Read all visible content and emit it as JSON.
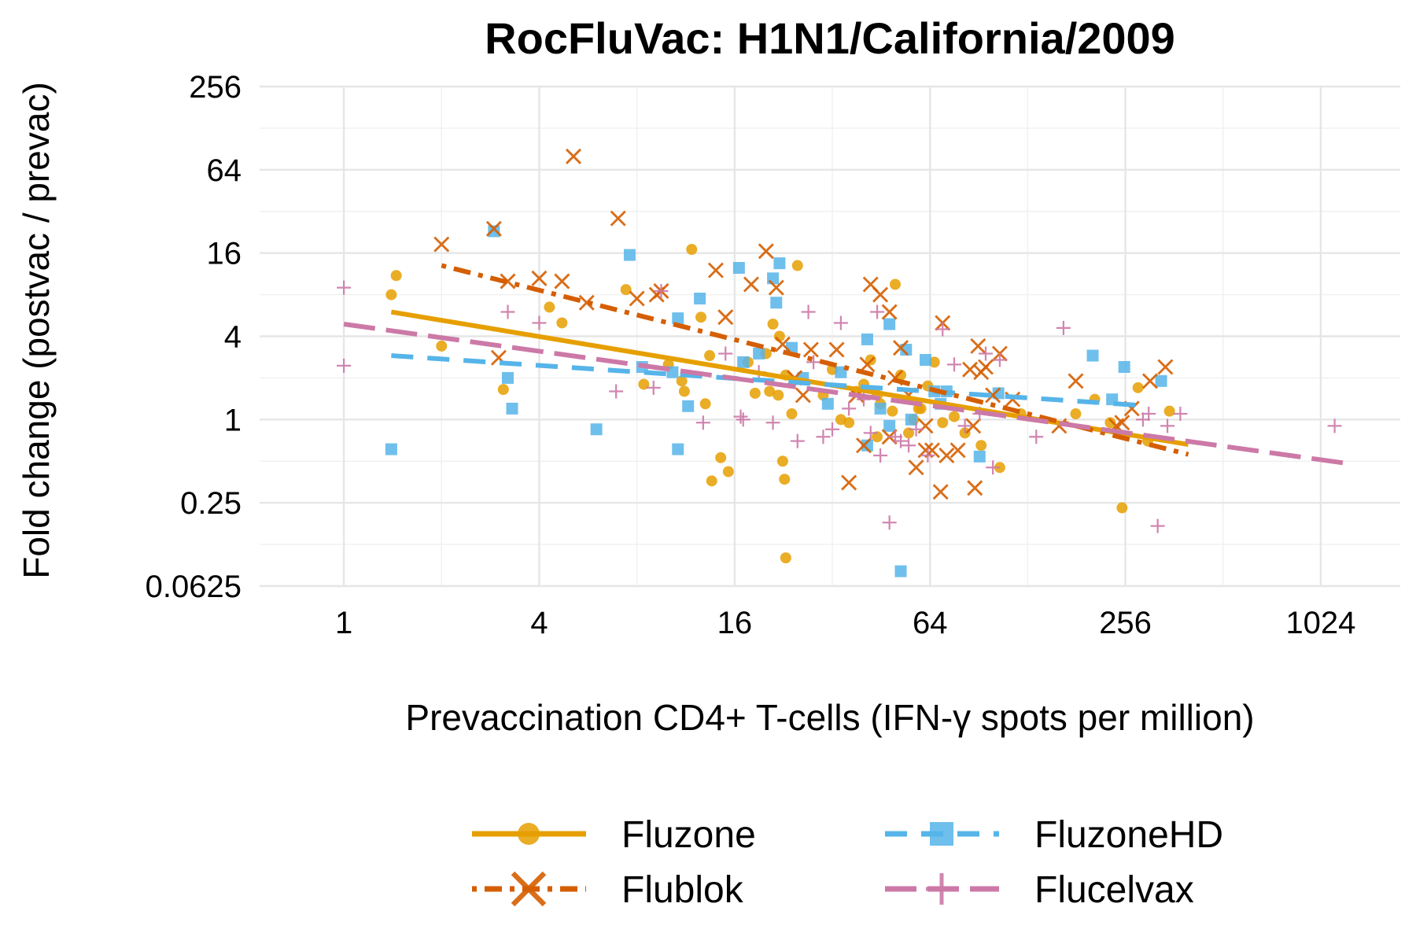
{
  "chart_data": {
    "type": "scatter",
    "title": "RocFluVac: H1N1/California/2009",
    "xlabel": "Prevaccination CD4+ T-cells (IFN-γ spots per million)",
    "ylabel": "Fold change (postvac / prevac)",
    "x_scale": "log2",
    "y_scale": "log2",
    "xlim": [
      0.55,
      1800
    ],
    "ylim": [
      0.0625,
      256
    ],
    "x_ticks": [
      1,
      4,
      16,
      64,
      256,
      1024
    ],
    "x_tick_labels": [
      "1",
      "4",
      "16",
      "64",
      "256",
      "1024"
    ],
    "y_ticks": [
      0.0625,
      0.25,
      1,
      4,
      16,
      64,
      256
    ],
    "y_tick_labels": [
      "0.0625",
      "0.25",
      "1",
      "4",
      "16",
      "64",
      "256"
    ],
    "grid": true,
    "legend_position": "bottom",
    "series": [
      {
        "name": "Fluzone",
        "marker": "circle",
        "line_style": "solid",
        "color": "#E69F00",
        "points": [
          [
            1.45,
            11.0
          ],
          [
            1.4,
            8.0
          ],
          [
            2.0,
            3.4
          ],
          [
            3.1,
            1.65
          ],
          [
            4.3,
            6.5
          ],
          [
            4.7,
            5.0
          ],
          [
            7.4,
            8.7
          ],
          [
            8.4,
            1.8
          ],
          [
            10.0,
            2.5
          ],
          [
            11.0,
            1.9
          ],
          [
            11.2,
            1.6
          ],
          [
            11.8,
            17.0
          ],
          [
            12.6,
            5.5
          ],
          [
            13.4,
            2.9
          ],
          [
            14.5,
            0.53
          ],
          [
            15.3,
            0.42
          ],
          [
            13.6,
            0.36
          ],
          [
            13.0,
            1.3
          ],
          [
            17.6,
            2.6
          ],
          [
            18.5,
            1.55
          ],
          [
            20.0,
            3.0
          ],
          [
            20.5,
            1.6
          ],
          [
            21.0,
            4.9
          ],
          [
            22.0,
            4.0
          ],
          [
            22.5,
            0.5
          ],
          [
            22.8,
            0.37
          ],
          [
            23.0,
            0.1
          ],
          [
            23.0,
            2.1
          ],
          [
            25.0,
            13.0
          ],
          [
            24.0,
            1.1
          ],
          [
            21.8,
            1.5
          ],
          [
            30.0,
            1.5
          ],
          [
            32.0,
            2.3
          ],
          [
            34.0,
            1.0
          ],
          [
            36.0,
            0.95
          ],
          [
            38.0,
            1.6
          ],
          [
            40.0,
            1.8
          ],
          [
            42.0,
            2.7
          ],
          [
            44.0,
            1.5
          ],
          [
            45.0,
            1.3
          ],
          [
            49.0,
            1.15
          ],
          [
            52.0,
            2.1
          ],
          [
            55.0,
            0.8
          ],
          [
            57.0,
            1.0
          ],
          [
            59.0,
            1.2
          ],
          [
            60.0,
            1.2
          ],
          [
            63.0,
            1.75
          ],
          [
            66.0,
            2.6
          ],
          [
            70.0,
            0.95
          ],
          [
            76.0,
            1.05
          ],
          [
            82.0,
            0.8
          ],
          [
            92.0,
            0.65
          ],
          [
            105.0,
            0.45
          ],
          [
            122.0,
            1.1
          ],
          [
            180.0,
            1.1
          ],
          [
            206.0,
            1.4
          ],
          [
            230.0,
            0.95
          ],
          [
            250.0,
            0.23
          ],
          [
            280.0,
            1.7
          ],
          [
            300.0,
            0.7
          ],
          [
            350.0,
            1.15
          ],
          [
            50.0,
            9.5
          ],
          [
            44.0,
            0.75
          ]
        ],
        "trend": [
          [
            1.4,
            6.0
          ],
          [
            400,
            0.66
          ]
        ]
      },
      {
        "name": "FluzoneHD",
        "marker": "square",
        "line_style": "dashed",
        "color": "#56B4E9",
        "points": [
          [
            1.4,
            0.61
          ],
          [
            2.9,
            23.0
          ],
          [
            3.2,
            2.0
          ],
          [
            3.3,
            1.2
          ],
          [
            6.0,
            0.85
          ],
          [
            7.6,
            15.5
          ],
          [
            8.3,
            2.4
          ],
          [
            10.7,
            0.61
          ],
          [
            10.7,
            5.4
          ],
          [
            10.3,
            2.2
          ],
          [
            11.5,
            1.25
          ],
          [
            12.5,
            7.5
          ],
          [
            16.5,
            12.5
          ],
          [
            17.0,
            2.6
          ],
          [
            19.0,
            3.0
          ],
          [
            21.0,
            10.5
          ],
          [
            22.0,
            13.5
          ],
          [
            21.5,
            7.0
          ],
          [
            24.0,
            3.3
          ],
          [
            26.0,
            2.0
          ],
          [
            31.0,
            1.3
          ],
          [
            34.0,
            2.2
          ],
          [
            41.0,
            3.8
          ],
          [
            41.0,
            0.65
          ],
          [
            45.0,
            1.2
          ],
          [
            48.0,
            0.9
          ],
          [
            48.0,
            4.9
          ],
          [
            52.0,
            0.08
          ],
          [
            54.0,
            3.2
          ],
          [
            56.0,
            1.0
          ],
          [
            62.0,
            2.7
          ],
          [
            66.0,
            1.6
          ],
          [
            69.0,
            1.3
          ],
          [
            72.0,
            1.6
          ],
          [
            91.0,
            0.54
          ],
          [
            104.0,
            1.55
          ],
          [
            203.0,
            2.9
          ],
          [
            233.0,
            1.4
          ],
          [
            254.0,
            2.4
          ],
          [
            330.0,
            1.9
          ]
        ],
        "trend": [
          [
            1.4,
            2.9
          ],
          [
            280,
            1.27
          ]
        ]
      },
      {
        "name": "Flublok",
        "marker": "x",
        "line_style": "dotdash",
        "color": "#D55E00",
        "points": [
          [
            2.0,
            18.5
          ],
          [
            2.9,
            24.0
          ],
          [
            3.0,
            2.8
          ],
          [
            3.2,
            10.0
          ],
          [
            4.0,
            10.5
          ],
          [
            4.7,
            10.0
          ],
          [
            5.1,
            80.0
          ],
          [
            5.6,
            7.0
          ],
          [
            7.0,
            28.5
          ],
          [
            8.0,
            7.5
          ],
          [
            9.2,
            8.0
          ],
          [
            9.5,
            8.5
          ],
          [
            14.0,
            12.0
          ],
          [
            15.0,
            5.5
          ],
          [
            18.0,
            9.5
          ],
          [
            20.0,
            16.5
          ],
          [
            21.5,
            9.0
          ],
          [
            22.5,
            3.5
          ],
          [
            24.5,
            2.0
          ],
          [
            26.0,
            1.5
          ],
          [
            27.5,
            3.2
          ],
          [
            33.0,
            3.2
          ],
          [
            36.0,
            0.35
          ],
          [
            38.0,
            1.5
          ],
          [
            40.0,
            0.65
          ],
          [
            41.0,
            2.5
          ],
          [
            42.0,
            9.5
          ],
          [
            45.0,
            8.0
          ],
          [
            48.0,
            0.75
          ],
          [
            50.0,
            2.0
          ],
          [
            52.0,
            3.3
          ],
          [
            55.0,
            1.5
          ],
          [
            58.0,
            0.45
          ],
          [
            62.0,
            0.6
          ],
          [
            65.0,
            0.6
          ],
          [
            69.0,
            0.3
          ],
          [
            72.0,
            0.55
          ],
          [
            78.0,
            0.6
          ],
          [
            85.0,
            2.3
          ],
          [
            87.0,
            0.9
          ],
          [
            88.0,
            0.32
          ],
          [
            90.0,
            3.4
          ],
          [
            95.0,
            2.4
          ],
          [
            105.0,
            3.0
          ],
          [
            115.0,
            1.4
          ],
          [
            160.0,
            0.9
          ],
          [
            180.0,
            1.9
          ],
          [
            305.0,
            1.9
          ],
          [
            340.0,
            2.4
          ],
          [
            268.0,
            1.2
          ],
          [
            62.0,
            0.9
          ],
          [
            70.0,
            5.0
          ],
          [
            92.0,
            2.2
          ],
          [
            100.0,
            1.5
          ],
          [
            240.0,
            0.9
          ],
          [
            250.0,
            0.95
          ],
          [
            48.0,
            6.0
          ]
        ],
        "trend": [
          [
            2.0,
            13.0
          ],
          [
            400,
            0.56
          ]
        ]
      },
      {
        "name": "Flucelvax",
        "marker": "plus",
        "line_style": "longdash",
        "color": "#CC79A7",
        "points": [
          [
            1.0,
            2.45
          ],
          [
            1.0,
            9.0
          ],
          [
            3.2,
            6.0
          ],
          [
            4.0,
            5.0
          ],
          [
            6.9,
            1.6
          ],
          [
            9.0,
            1.7
          ],
          [
            9.5,
            8.5
          ],
          [
            12.8,
            0.95
          ],
          [
            15.0,
            3.0
          ],
          [
            16.7,
            1.05
          ],
          [
            19.0,
            2.2
          ],
          [
            21.0,
            0.95
          ],
          [
            25.0,
            0.7
          ],
          [
            27.0,
            6.0
          ],
          [
            28.0,
            2.6
          ],
          [
            30.0,
            0.75
          ],
          [
            32.0,
            0.85
          ],
          [
            34.0,
            5.0
          ],
          [
            36.0,
            1.2
          ],
          [
            40.0,
            1.4
          ],
          [
            44.0,
            6.0
          ],
          [
            45.0,
            0.55
          ],
          [
            48.0,
            0.18
          ],
          [
            50.0,
            0.75
          ],
          [
            52.0,
            0.7
          ],
          [
            55.0,
            0.65
          ],
          [
            58.0,
            0.85
          ],
          [
            63.0,
            0.55
          ],
          [
            70.0,
            4.5
          ],
          [
            76.0,
            2.5
          ],
          [
            82.0,
            0.9
          ],
          [
            91.0,
            1.1
          ],
          [
            95.0,
            3.0
          ],
          [
            100.0,
            0.45
          ],
          [
            105.0,
            2.7
          ],
          [
            136.0,
            0.75
          ],
          [
            165.0,
            4.6
          ],
          [
            290.0,
            1.0
          ],
          [
            302.0,
            1.1
          ],
          [
            322.0,
            0.17
          ],
          [
            345.0,
            0.9
          ],
          [
            378.0,
            1.1
          ],
          [
            1130.0,
            0.9
          ],
          [
            17.0,
            1.0
          ],
          [
            42.0,
            0.8
          ]
        ],
        "trend": [
          [
            1.0,
            4.9
          ],
          [
            1250,
            0.48
          ]
        ]
      }
    ]
  }
}
